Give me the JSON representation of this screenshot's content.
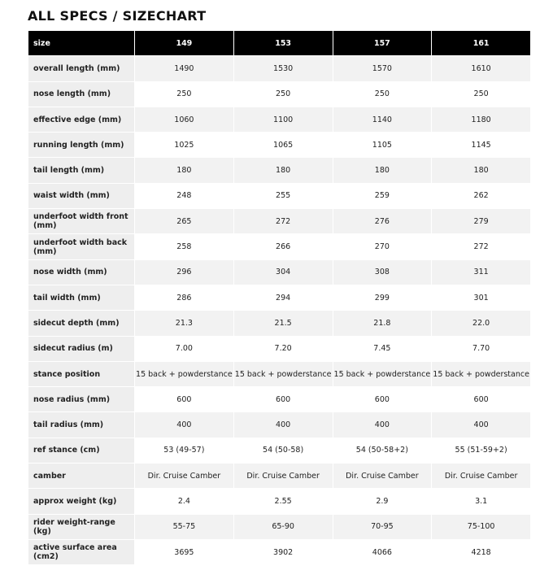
{
  "title": "ALL SPECS / SIZECHART",
  "table": {
    "header": [
      "size",
      "149",
      "153",
      "157",
      "161"
    ],
    "rows": [
      [
        "overall length (mm)",
        "1490",
        "1530",
        "1570",
        "1610"
      ],
      [
        "nose length (mm)",
        "250",
        "250",
        "250",
        "250"
      ],
      [
        "effective edge (mm)",
        "1060",
        "1100",
        "1140",
        "1180"
      ],
      [
        "running length (mm)",
        "1025",
        "1065",
        "1105",
        "1145"
      ],
      [
        "tail length (mm)",
        "180",
        "180",
        "180",
        "180"
      ],
      [
        "waist width (mm)",
        "248",
        "255",
        "259",
        "262"
      ],
      [
        "underfoot width front (mm)",
        "265",
        "272",
        "276",
        "279"
      ],
      [
        "underfoot width back (mm)",
        "258",
        "266",
        "270",
        "272"
      ],
      [
        "nose width (mm)",
        "296",
        "304",
        "308",
        "311"
      ],
      [
        "tail width (mm)",
        "286",
        "294",
        "299",
        "301"
      ],
      [
        "sidecut depth (mm)",
        "21.3",
        "21.5",
        "21.8",
        "22.0"
      ],
      [
        "sidecut radius (m)",
        "7.00",
        "7.20",
        "7.45",
        "7.70"
      ],
      [
        "stance position",
        "15 back + powderstance",
        "15 back + powderstance",
        "15 back + powderstance",
        "15 back + powderstance"
      ],
      [
        "nose radius (mm)",
        "600",
        "600",
        "600",
        "600"
      ],
      [
        "tail radius (mm)",
        "400",
        "400",
        "400",
        "400"
      ],
      [
        "ref stance (cm)",
        "53 (49-57)",
        "54 (50-58)",
        "54 (50-58+2)",
        "55 (51-59+2)"
      ],
      [
        "camber",
        "Dir. Cruise Camber",
        "Dir. Cruise Camber",
        "Dir. Cruise Camber",
        "Dir. Cruise Camber"
      ],
      [
        "approx weight (kg)",
        "2.4",
        "2.55",
        "2.9",
        "3.1"
      ],
      [
        "rider weight-range (kg)",
        "55-75",
        "65-90",
        "70-95",
        "75-100"
      ],
      [
        "active surface area (cm2)",
        "3695",
        "3902",
        "4066",
        "4218"
      ]
    ]
  }
}
